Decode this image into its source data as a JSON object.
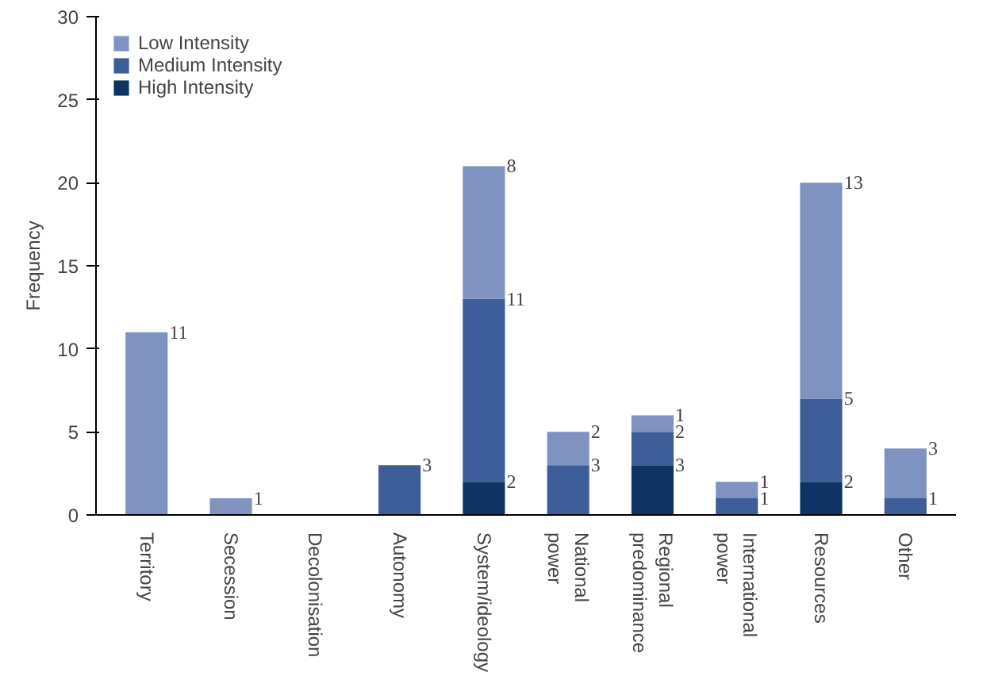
{
  "chart_data": {
    "type": "bar",
    "stacked": true,
    "ylabel": "Frequency",
    "categories": [
      "Territory",
      "Secession",
      "Decolonisation",
      "Autonomy",
      "System/ideology",
      "National power",
      "Regional predominance",
      "International power",
      "Resources",
      "Other"
    ],
    "series": [
      {
        "name": "High Intensity",
        "color": "#0d3463",
        "values": [
          0,
          0,
          0,
          0,
          2,
          0,
          3,
          0,
          2,
          0
        ],
        "value_labels": [
          null,
          null,
          null,
          null,
          "2",
          null,
          "3",
          null,
          "2",
          null
        ]
      },
      {
        "name": "Medium Intensity",
        "color": "#3d5e99",
        "values": [
          0,
          0,
          0,
          3,
          11,
          3,
          2,
          1,
          5,
          1
        ],
        "value_labels": [
          null,
          null,
          null,
          "3",
          "11",
          "3",
          "2",
          "1",
          "5",
          "1"
        ]
      },
      {
        "name": "Low Intensity",
        "color": "#7f93c0",
        "values": [
          11,
          1,
          0,
          0,
          8,
          2,
          1,
          1,
          13,
          3
        ],
        "value_labels": [
          "11",
          "1",
          null,
          null,
          "8",
          "2",
          "1",
          "1",
          "13",
          "3"
        ]
      }
    ],
    "ylim": [
      0,
      30
    ],
    "yticks": [
      0,
      5,
      10,
      15,
      20,
      25,
      30
    ],
    "legend": "top left",
    "grid": false
  }
}
